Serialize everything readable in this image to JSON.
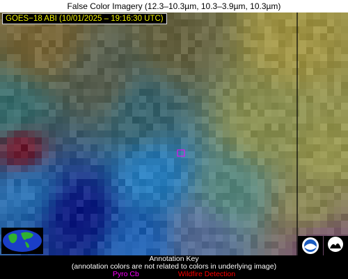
{
  "title": "False Color Imagery (12.3–10.3µm, 10.3–3.9µm, 10.3µm)",
  "overlay_label": "GOES−18 ABI (10/01/2025 – 19:16:30 UTC)",
  "annotation_key": {
    "title": "Annotation Key",
    "note": "(annotation colors are not related to colors in underlying image)",
    "items": [
      {
        "label": "Pyro Cb",
        "color": "#ff00ff"
      },
      {
        "label": "Wildfire Detection",
        "color": "#ff0000"
      }
    ]
  }
}
